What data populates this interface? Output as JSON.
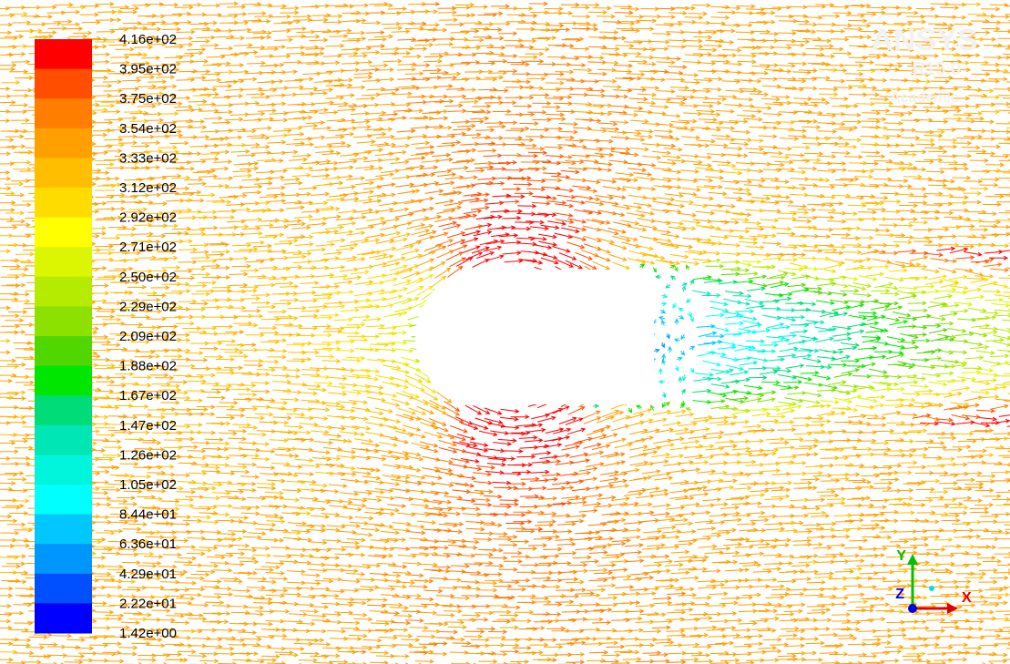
{
  "colorbar": {
    "labels": [
      "4.16e+02",
      "3.95e+02",
      "3.75e+02",
      "3.54e+02",
      "3.33e+02",
      "3.12e+02",
      "2.92e+02",
      "2.71e+02",
      "2.50e+02",
      "2.29e+02",
      "2.09e+02",
      "1.88e+02",
      "1.67e+02",
      "1.47e+02",
      "1.26e+02",
      "1.05e+02",
      "8.44e+01",
      "6.36e+01",
      "4.29e+01",
      "2.22e+01",
      "1.42e+00"
    ]
  },
  "watermark": {
    "product": "ANSYS",
    "version": "R15.0",
    "license": "Academic"
  },
  "axes_triad": {
    "x": "X",
    "y": "Y",
    "z": "Z"
  }
}
